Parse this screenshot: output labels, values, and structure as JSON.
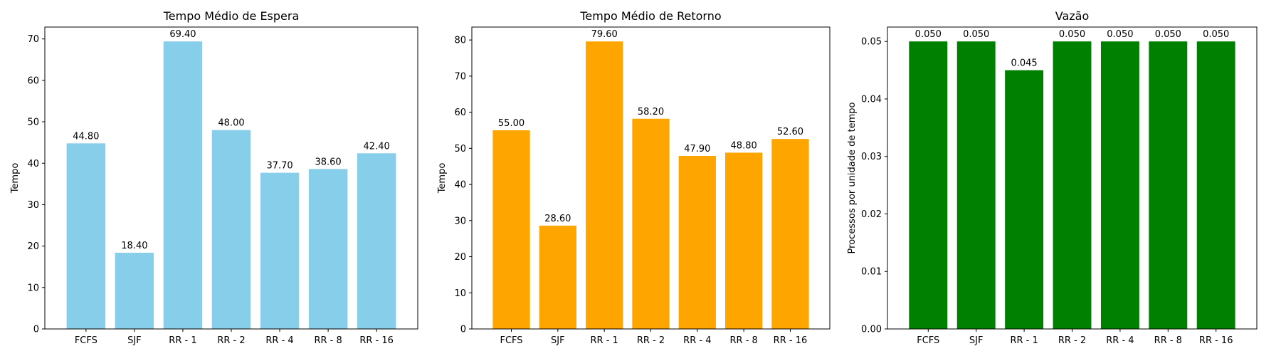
{
  "chart_data": [
    {
      "type": "bar",
      "title": "Tempo Médio de Espera",
      "xlabel": "",
      "ylabel": "Tempo",
      "categories": [
        "FCFS",
        "SJF",
        "RR - 1",
        "RR - 2",
        "RR - 4",
        "RR - 8",
        "RR - 16"
      ],
      "values": [
        44.8,
        18.4,
        69.4,
        48.0,
        37.7,
        38.6,
        42.4
      ],
      "value_labels": [
        "44.80",
        "18.40",
        "69.40",
        "48.00",
        "37.70",
        "38.60",
        "42.40"
      ],
      "ylim": [
        0,
        72.87
      ],
      "yticks": [
        0,
        10,
        20,
        30,
        40,
        50,
        60,
        70
      ],
      "ytick_labels": [
        "0",
        "10",
        "20",
        "30",
        "40",
        "50",
        "60",
        "70"
      ],
      "color": "#87ceeb",
      "grid": false
    },
    {
      "type": "bar",
      "title": "Tempo Médio de Retorno",
      "xlabel": "",
      "ylabel": "Tempo",
      "categories": [
        "FCFS",
        "SJF",
        "RR - 1",
        "RR - 2",
        "RR - 4",
        "RR - 8",
        "RR - 16"
      ],
      "values": [
        55.0,
        28.6,
        79.6,
        58.2,
        47.9,
        48.8,
        52.6
      ],
      "value_labels": [
        "55.00",
        "28.60",
        "79.60",
        "58.20",
        "47.90",
        "48.80",
        "52.60"
      ],
      "ylim": [
        0,
        83.58
      ],
      "yticks": [
        0,
        10,
        20,
        30,
        40,
        50,
        60,
        70,
        80
      ],
      "ytick_labels": [
        "0",
        "10",
        "20",
        "30",
        "40",
        "50",
        "60",
        "70",
        "80"
      ],
      "color": "#ffa500",
      "grid": false
    },
    {
      "type": "bar",
      "title": "Vazão",
      "xlabel": "",
      "ylabel": "Processos por unidade de tempo",
      "categories": [
        "FCFS",
        "SJF",
        "RR - 1",
        "RR - 2",
        "RR - 4",
        "RR - 8",
        "RR - 16"
      ],
      "values": [
        0.05,
        0.05,
        0.045,
        0.05,
        0.05,
        0.05,
        0.05
      ],
      "value_labels": [
        "0.050",
        "0.050",
        "0.045",
        "0.050",
        "0.050",
        "0.050",
        "0.050"
      ],
      "ylim": [
        0,
        0.0525
      ],
      "yticks": [
        0,
        0.01,
        0.02,
        0.03,
        0.04,
        0.05
      ],
      "ytick_labels": [
        "0.00",
        "0.01",
        "0.02",
        "0.03",
        "0.04",
        "0.05"
      ],
      "color": "#008000",
      "grid": false
    }
  ]
}
